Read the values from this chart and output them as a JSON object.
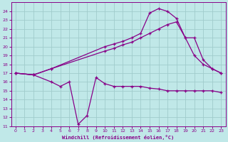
{
  "background_color": "#c0e8e8",
  "grid_color": "#a0cccc",
  "line_color": "#880088",
  "xlabel": "Windchill (Refroidissement éolien,°C)",
  "xlim": [
    -0.5,
    23.5
  ],
  "ylim": [
    11,
    25
  ],
  "yticks": [
    11,
    12,
    13,
    14,
    15,
    16,
    17,
    18,
    19,
    20,
    21,
    22,
    23,
    24
  ],
  "xticks": [
    0,
    1,
    2,
    3,
    4,
    5,
    6,
    7,
    8,
    9,
    10,
    11,
    12,
    13,
    14,
    15,
    16,
    17,
    18,
    19,
    20,
    21,
    22,
    23
  ],
  "series1_x": [
    0,
    2,
    4,
    10,
    11,
    12,
    13,
    14,
    15,
    16,
    17,
    18,
    19,
    20,
    21,
    22,
    23
  ],
  "series1_y": [
    17.0,
    16.8,
    17.5,
    19.5,
    19.8,
    20.2,
    20.5,
    21.0,
    21.5,
    22.0,
    22.5,
    22.8,
    21.0,
    21.0,
    18.5,
    17.5,
    17.0
  ],
  "series2_x": [
    0,
    2,
    4,
    10,
    11,
    12,
    13,
    14,
    15,
    16,
    17,
    18,
    19,
    20,
    21,
    22,
    23
  ],
  "series2_y": [
    17.0,
    16.8,
    17.5,
    20.0,
    20.3,
    20.6,
    21.0,
    21.5,
    23.8,
    24.3,
    24.0,
    23.2,
    21.0,
    19.0,
    18.0,
    17.5,
    17.0
  ],
  "series3_x": [
    0,
    2,
    4,
    5,
    6,
    7,
    8,
    9,
    10,
    11,
    12,
    13,
    14,
    15,
    16,
    17,
    18,
    19,
    20,
    21,
    22,
    23
  ],
  "series3_y": [
    17.0,
    16.8,
    16.0,
    15.5,
    16.0,
    11.2,
    12.2,
    16.5,
    15.8,
    15.5,
    15.5,
    15.5,
    15.5,
    15.3,
    15.2,
    15.0,
    15.0,
    15.0,
    15.0,
    15.0,
    15.0,
    14.8
  ]
}
